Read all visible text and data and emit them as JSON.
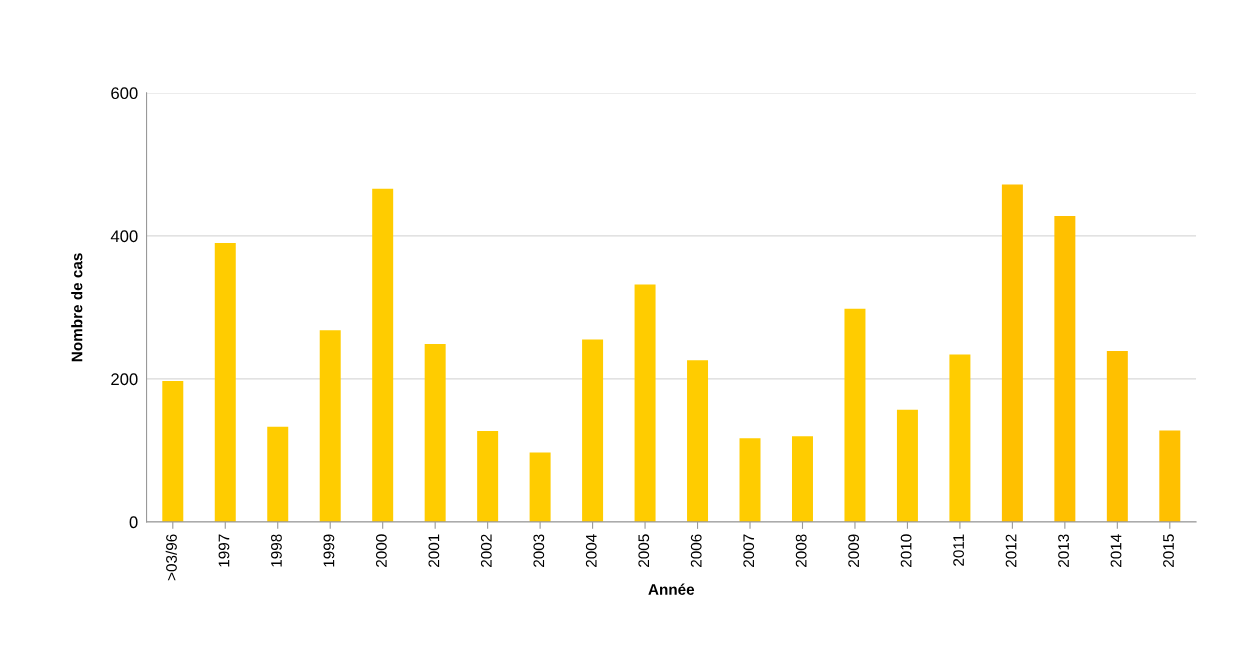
{
  "chart_data": {
    "type": "bar",
    "xlabel": "Année",
    "ylabel": "Nombre de cas",
    "categories": [
      ">03/96",
      "1997",
      "1998",
      "1999",
      "2000",
      "2001",
      "2002",
      "2003",
      "2004",
      "2005",
      "2006",
      "2007",
      "2008",
      "2009",
      "2010",
      "2011",
      "2012",
      "2013",
      "2014",
      "2015"
    ],
    "values": [
      197,
      390,
      133,
      268,
      466,
      249,
      127,
      97,
      255,
      332,
      226,
      117,
      120,
      298,
      157,
      234,
      472,
      428,
      239,
      128
    ],
    "colors": [
      "#ffcc00",
      "#ffcc00",
      "#ffcc00",
      "#ffcc00",
      "#ffcc00",
      "#ffcc00",
      "#ffcc00",
      "#ffcc00",
      "#ffcc00",
      "#ffcc00",
      "#ffcc00",
      "#ffcc00",
      "#ffcc00",
      "#ffcc00",
      "#ffcc00",
      "#ffcc00",
      "#ffc000",
      "#ffc000",
      "#ffc000",
      "#ffc000"
    ],
    "ylim": [
      0,
      600
    ],
    "yticks": [
      0,
      200,
      400,
      600
    ],
    "grid": "y"
  }
}
